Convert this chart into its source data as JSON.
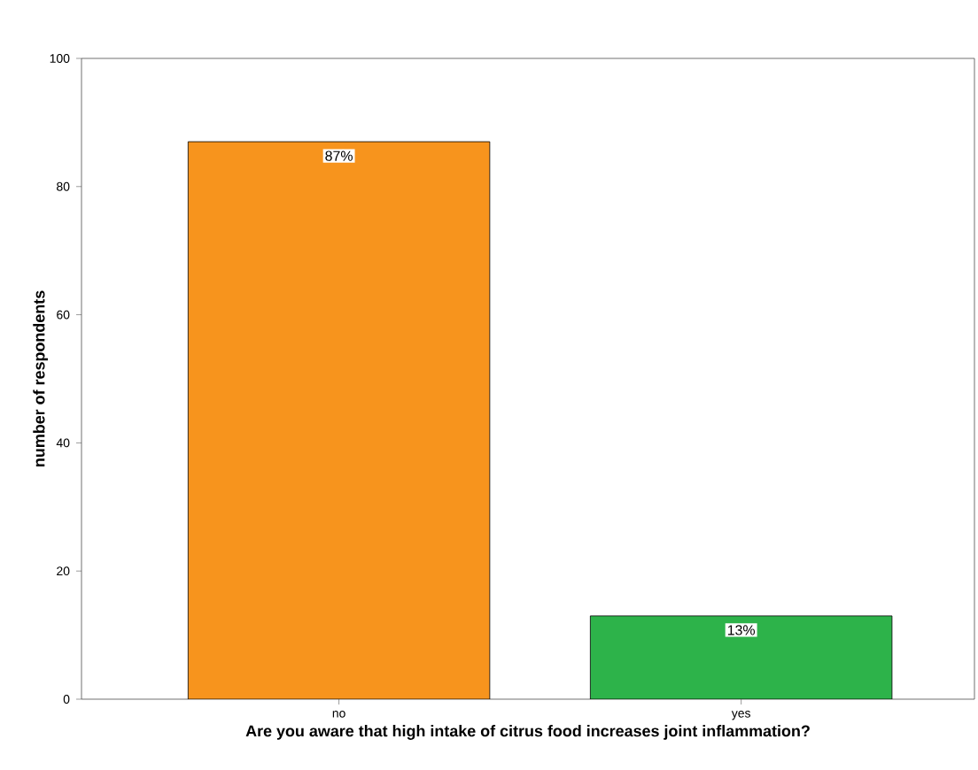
{
  "chart_data": {
    "type": "bar",
    "xlabel": "Are you aware that high intake of citrus food increases joint inflammation?",
    "ylabel": "number of respondents",
    "categories": [
      "no",
      "yes"
    ],
    "values": [
      87,
      13
    ],
    "colors": [
      "#f7941d",
      "#2db34a"
    ],
    "value_labels": [
      "87%",
      "13%"
    ],
    "ylim": [
      0,
      100
    ],
    "yticks": [
      0,
      20,
      40,
      60,
      80,
      100
    ]
  }
}
